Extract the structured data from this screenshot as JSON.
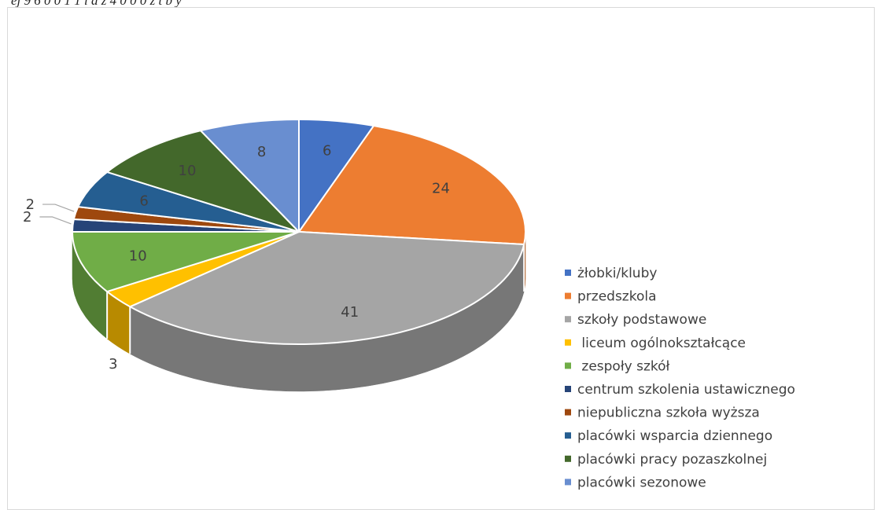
{
  "caption": "ej 9 6 0 0 1 1 i d ż 4 0 0 0 z t b y",
  "chart_data": {
    "type": "pie",
    "variant": "3d",
    "title": "",
    "legend_position": "right",
    "categories": [
      "żłobki/kluby",
      "przedszkola",
      "szkoły podstawowe",
      " liceum ogólnokształcące",
      " zespoły szkół",
      "centrum szkolenia ustawicznego",
      "niepubliczna szkoła wyższa",
      "placówki wsparcia dziennego",
      "placówki pracy pozaszkolnej",
      "placówki sezonowe"
    ],
    "values": [
      6,
      24,
      41,
      3,
      10,
      2,
      2,
      6,
      10,
      8
    ],
    "data_labels": [
      "6",
      "24",
      "41",
      "3",
      "10",
      "2",
      "2",
      "6",
      "10",
      "8"
    ],
    "colors": [
      "#4472C4",
      "#ED7D31",
      "#A5A5A5",
      "#FFC000",
      "#70AD47",
      "#264478",
      "#9E480E",
      "#255E91",
      "#43682B",
      "#698ED0"
    ]
  }
}
